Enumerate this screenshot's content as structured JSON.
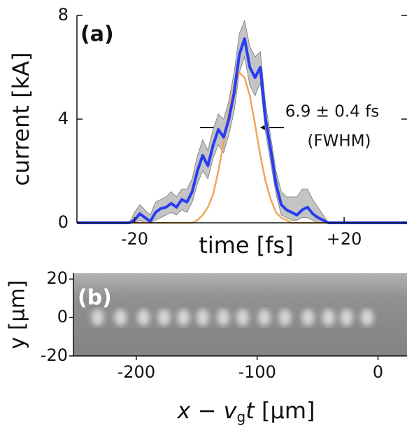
{
  "chart_data": [
    {
      "type": "line",
      "title": "(a)",
      "xlabel": "time [fs]",
      "ylabel": "current [kA]",
      "annotations": [
        "6.9 ± 0.4 fs",
        "(FWHM)"
      ],
      "xlim": [
        -31,
        32
      ],
      "ylim": [
        0,
        8
      ],
      "xticks": [
        -20,
        {
          "value": 20,
          "label": "+20"
        }
      ],
      "yticks": [
        0,
        4,
        8
      ],
      "x": [
        -31,
        -30,
        -29,
        -28,
        -27,
        -26,
        -25,
        -24,
        -23,
        -22,
        -21,
        -20,
        -19,
        -18,
        -17,
        -16,
        -15,
        -14,
        -13,
        -12,
        -11,
        -10,
        -9,
        -8,
        -7,
        -6,
        -5,
        -4,
        -3,
        -2,
        -1,
        0,
        1,
        2,
        3,
        4,
        5,
        6,
        7,
        8,
        9,
        10,
        11,
        12,
        13,
        14,
        15,
        16,
        17,
        18,
        19,
        20,
        21,
        22,
        23,
        24,
        25,
        26,
        27,
        28,
        29,
        30,
        31,
        32
      ],
      "band": {
        "color": "#c4c4c4",
        "upper": [
          0,
          0,
          0,
          0,
          0,
          0,
          0,
          0,
          0,
          0,
          0,
          0.4,
          0.7,
          0.5,
          0.3,
          0.8,
          0.9,
          1.0,
          1.2,
          1.0,
          1.3,
          1.3,
          1.7,
          2.6,
          3.2,
          2.8,
          3.6,
          4.2,
          4.0,
          4.7,
          5.8,
          7.3,
          7.8,
          6.8,
          6.4,
          6.6,
          4.6,
          3.3,
          2.0,
          1.2,
          1.0,
          1.0,
          1.0,
          1.3,
          1.3,
          0.9,
          0.6,
          0.3,
          0,
          0,
          0,
          0,
          0,
          0,
          0,
          0,
          0,
          0,
          0,
          0,
          0,
          0,
          0,
          0
        ],
        "lower": [
          0,
          0,
          0,
          0,
          0,
          0,
          0,
          0,
          0,
          0,
          0,
          0,
          0.1,
          0,
          0,
          0.1,
          0.2,
          0.3,
          0.4,
          0.3,
          0.5,
          0.4,
          0.8,
          1.5,
          2.0,
          1.7,
          2.5,
          3.0,
          2.7,
          3.4,
          4.3,
          5.8,
          6.4,
          5.3,
          4.9,
          5.4,
          3.5,
          2.3,
          1.1,
          0.3,
          0.2,
          0.1,
          0.1,
          0.2,
          0.2,
          0.1,
          0,
          0,
          0,
          0,
          0,
          0,
          0,
          0,
          0,
          0,
          0,
          0,
          0,
          0,
          0,
          0,
          0,
          0
        ]
      },
      "series": [
        {
          "color": "#f0a55a",
          "values": [
            0,
            0,
            0,
            0,
            0,
            0,
            0,
            0,
            0,
            0,
            0,
            0,
            0,
            0,
            0,
            0,
            0,
            0,
            0,
            0,
            0,
            0,
            0,
            0.1,
            0.3,
            0.6,
            1.1,
            2.0,
            3.1,
            4.3,
            5.3,
            5.8,
            5.6,
            4.9,
            3.8,
            2.6,
            1.6,
            0.9,
            0.4,
            0.2,
            0.1,
            0,
            0,
            0,
            0,
            0,
            0,
            0,
            0,
            0,
            0,
            0,
            0,
            0,
            0,
            0,
            0,
            0,
            0,
            0,
            0,
            0,
            0,
            0
          ]
        },
        {
          "color": "#2a3cf0",
          "values": [
            0,
            0,
            0,
            0,
            0,
            0,
            0,
            0,
            0,
            0,
            0,
            0.1,
            0.35,
            0.2,
            0.05,
            0.4,
            0.55,
            0.6,
            0.75,
            0.6,
            0.9,
            0.8,
            1.2,
            2.0,
            2.6,
            2.2,
            3.0,
            3.6,
            3.3,
            4.0,
            5.0,
            6.5,
            7.1,
            6.0,
            5.6,
            6.0,
            4.0,
            2.8,
            1.5,
            0.7,
            0.5,
            0.4,
            0.3,
            0.5,
            0.6,
            0.35,
            0.2,
            0.1,
            0,
            0,
            0,
            0,
            0,
            0,
            0,
            0,
            0,
            0,
            0,
            0,
            0,
            0,
            0,
            0
          ]
        }
      ]
    },
    {
      "type": "image",
      "title": "(b)",
      "ylabel": "y [µm]",
      "xlabel_parts": [
        "x − v",
        "g",
        "t",
        " [µm]"
      ],
      "xlim": [
        -252,
        24
      ],
      "ylim": [
        -20,
        23
      ],
      "xticks": [
        -200,
        -100,
        0
      ],
      "yticks": [
        -20,
        0,
        20
      ],
      "spots_x": [
        -232,
        -213,
        -194,
        -177,
        -161,
        -145,
        -128,
        -112,
        -94,
        -77,
        -58,
        -41,
        -26,
        -9
      ]
    }
  ]
}
